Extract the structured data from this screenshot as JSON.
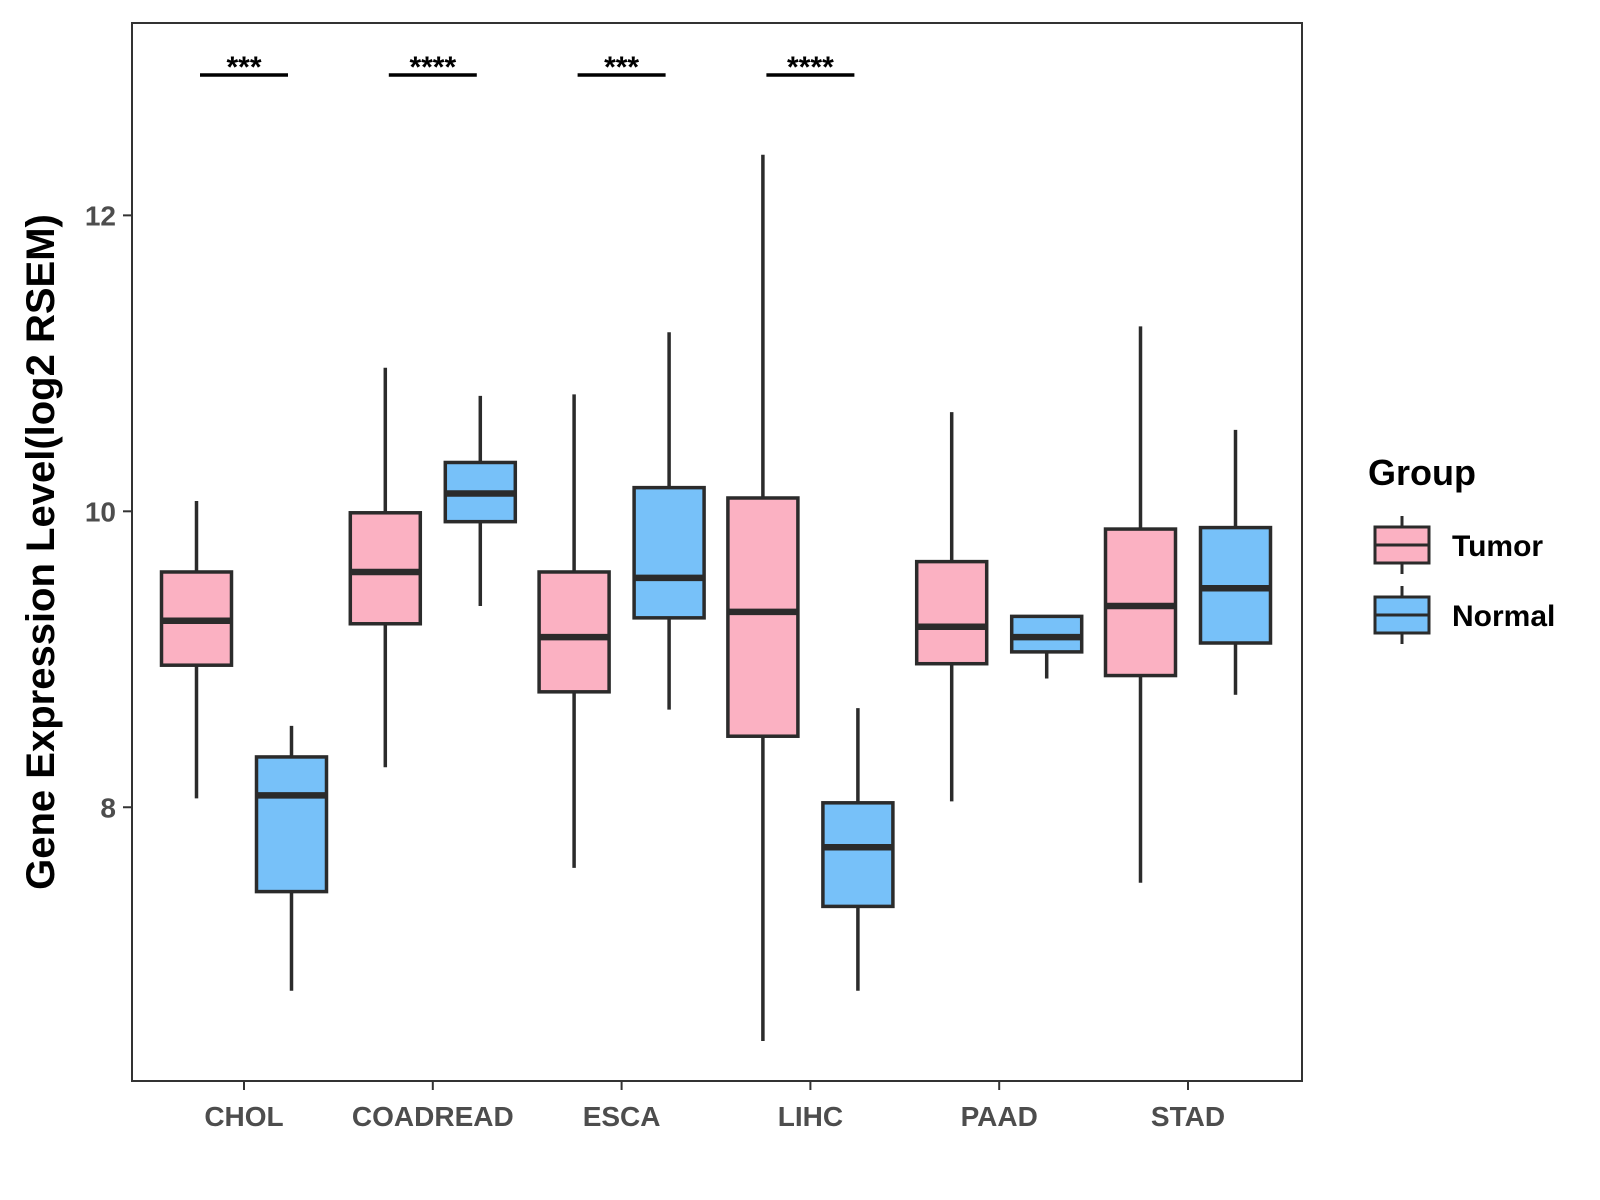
{
  "chart_data": {
    "type": "boxplot",
    "title": "",
    "xlabel": "",
    "ylabel": "Gene Expression Level(log2 RSEM)",
    "ylim": [
      6.15,
      13.3
    ],
    "yticks": [
      8,
      10,
      12
    ],
    "categories": [
      "CHOL",
      "COADREAD",
      "ESCA",
      "LIHC",
      "PAAD",
      "STAD"
    ],
    "legend": {
      "title": "Group",
      "position": "right",
      "entries": [
        {
          "name": "Tumor",
          "color": "#FBB1C2"
        },
        {
          "name": "Normal",
          "color": "#77C1F9"
        }
      ]
    },
    "series": [
      {
        "name": "Tumor",
        "color": "#FBB1C2",
        "boxes": [
          {
            "category": "CHOL",
            "whisker_low": 8.06,
            "q1": 8.96,
            "median": 9.26,
            "q3": 9.59,
            "whisker_high": 10.07
          },
          {
            "category": "COADREAD",
            "whisker_low": 8.27,
            "q1": 9.24,
            "median": 9.59,
            "q3": 9.99,
            "whisker_high": 10.97
          },
          {
            "category": "ESCA",
            "whisker_low": 7.59,
            "q1": 8.78,
            "median": 9.15,
            "q3": 9.59,
            "whisker_high": 10.79
          },
          {
            "category": "LIHC",
            "whisker_low": 6.42,
            "q1": 8.48,
            "median": 9.32,
            "q3": 10.09,
            "whisker_high": 12.41
          },
          {
            "category": "PAAD",
            "whisker_low": 8.04,
            "q1": 8.97,
            "median": 9.22,
            "q3": 9.66,
            "whisker_high": 10.67
          },
          {
            "category": "STAD",
            "whisker_low": 7.49,
            "q1": 8.89,
            "median": 9.36,
            "q3": 9.88,
            "whisker_high": 11.25
          }
        ]
      },
      {
        "name": "Normal",
        "color": "#77C1F9",
        "boxes": [
          {
            "category": "CHOL",
            "whisker_low": 6.76,
            "q1": 7.43,
            "median": 8.08,
            "q3": 8.34,
            "whisker_high": 8.55
          },
          {
            "category": "COADREAD",
            "whisker_low": 9.36,
            "q1": 9.93,
            "median": 10.12,
            "q3": 10.33,
            "whisker_high": 10.78
          },
          {
            "category": "ESCA",
            "whisker_low": 8.66,
            "q1": 9.28,
            "median": 9.55,
            "q3": 10.16,
            "whisker_high": 11.21
          },
          {
            "category": "LIHC",
            "whisker_low": 6.76,
            "q1": 7.33,
            "median": 7.73,
            "q3": 8.03,
            "whisker_high": 8.67
          },
          {
            "category": "PAAD",
            "whisker_low": 8.87,
            "q1": 9.05,
            "median": 9.15,
            "q3": 9.29,
            "whisker_high": 9.29
          },
          {
            "category": "STAD",
            "whisker_low": 8.76,
            "q1": 9.11,
            "median": 9.48,
            "q3": 9.89,
            "whisker_high": 10.55
          }
        ]
      }
    ],
    "annotations": [
      {
        "category": "CHOL",
        "label": "***"
      },
      {
        "category": "COADREAD",
        "label": "****"
      },
      {
        "category": "ESCA",
        "label": "***"
      },
      {
        "category": "LIHC",
        "label": "****"
      }
    ]
  }
}
